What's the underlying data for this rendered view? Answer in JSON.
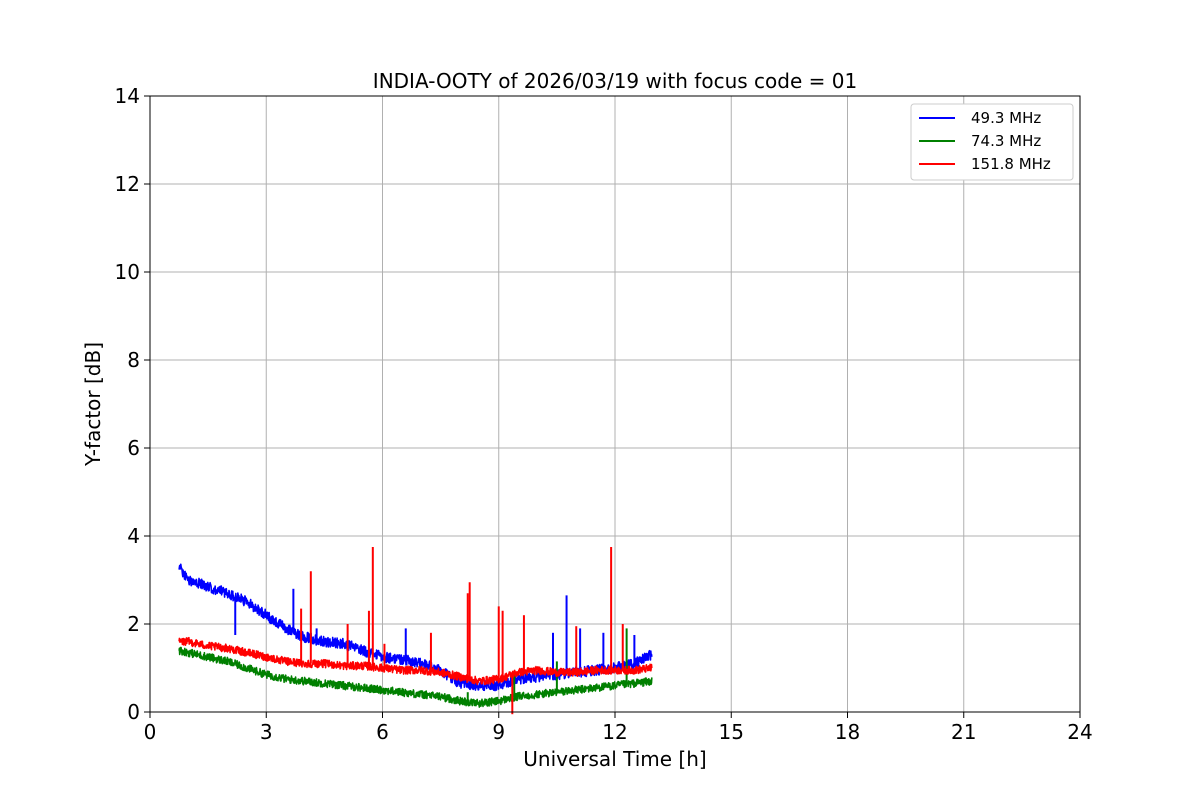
{
  "chart_data": {
    "type": "line",
    "title": "INDIA-OOTY of 2026/03/19 with focus code = 01",
    "xlabel": "Universal Time [h]",
    "ylabel": "Y-factor [dB]",
    "xlim": [
      0,
      24
    ],
    "ylim": [
      0,
      14
    ],
    "xticks": [
      0,
      3,
      6,
      9,
      12,
      15,
      18,
      21,
      24
    ],
    "yticks": [
      0,
      2,
      4,
      6,
      8,
      10,
      12,
      14
    ],
    "grid": true,
    "legend_position": "top-right",
    "series": [
      {
        "name": "  49.3 MHz",
        "color": "#0000ff",
        "x": [
          0.75,
          1.0,
          1.5,
          2.0,
          2.5,
          3.0,
          3.5,
          4.0,
          4.5,
          5.0,
          5.5,
          6.0,
          6.5,
          7.0,
          7.5,
          8.0,
          8.5,
          9.0,
          9.5,
          10.0,
          10.5,
          11.0,
          11.5,
          12.0,
          12.5,
          12.95
        ],
        "y": [
          3.3,
          3.0,
          2.85,
          2.7,
          2.5,
          2.2,
          1.9,
          1.7,
          1.6,
          1.55,
          1.4,
          1.25,
          1.2,
          1.1,
          0.95,
          0.65,
          0.6,
          0.6,
          0.75,
          0.8,
          0.85,
          0.9,
          0.95,
          1.0,
          1.1,
          1.3
        ],
        "spikes": [
          [
            2.2,
            1.75
          ],
          [
            3.7,
            2.8
          ],
          [
            4.3,
            1.9
          ],
          [
            6.6,
            1.9
          ],
          [
            10.4,
            1.8
          ],
          [
            10.75,
            2.65
          ],
          [
            11.1,
            1.9
          ],
          [
            11.7,
            1.8
          ],
          [
            12.5,
            1.75
          ]
        ]
      },
      {
        "name": "  74.3 MHz",
        "color": "#008000",
        "x": [
          0.75,
          1.0,
          1.5,
          2.0,
          2.5,
          3.0,
          3.5,
          4.0,
          4.5,
          5.0,
          5.5,
          6.0,
          6.5,
          7.0,
          7.5,
          8.0,
          8.5,
          9.0,
          9.5,
          10.0,
          10.5,
          11.0,
          11.5,
          12.0,
          12.5,
          12.95
        ],
        "y": [
          1.4,
          1.35,
          1.25,
          1.15,
          1.0,
          0.85,
          0.75,
          0.7,
          0.65,
          0.6,
          0.55,
          0.5,
          0.45,
          0.4,
          0.35,
          0.25,
          0.2,
          0.25,
          0.35,
          0.4,
          0.45,
          0.5,
          0.55,
          0.6,
          0.65,
          0.7
        ],
        "spikes": [
          [
            8.2,
            0.45
          ],
          [
            9.4,
            0.9
          ],
          [
            10.5,
            1.15
          ],
          [
            12.3,
            1.9
          ]
        ]
      },
      {
        "name": "151.8 MHz",
        "color": "#ff0000",
        "x": [
          0.75,
          1.0,
          1.5,
          2.0,
          2.5,
          3.0,
          3.5,
          4.0,
          4.5,
          5.0,
          5.5,
          6.0,
          6.5,
          7.0,
          7.5,
          8.0,
          8.5,
          9.0,
          9.5,
          10.0,
          10.5,
          11.0,
          11.5,
          12.0,
          12.5,
          12.95
        ],
        "y": [
          1.6,
          1.6,
          1.5,
          1.45,
          1.35,
          1.25,
          1.15,
          1.1,
          1.1,
          1.05,
          1.05,
          1.0,
          0.95,
          0.95,
          0.9,
          0.8,
          0.7,
          0.75,
          0.9,
          0.95,
          0.9,
          0.9,
          0.95,
          0.95,
          0.95,
          1.0
        ],
        "spikes": [
          [
            3.9,
            2.35
          ],
          [
            4.15,
            3.2
          ],
          [
            5.1,
            2.0
          ],
          [
            5.65,
            2.3
          ],
          [
            5.75,
            3.75
          ],
          [
            6.05,
            1.55
          ],
          [
            7.25,
            1.8
          ],
          [
            8.2,
            2.7
          ],
          [
            8.25,
            2.95
          ],
          [
            9.0,
            2.4
          ],
          [
            9.1,
            2.3
          ],
          [
            9.35,
            -0.05
          ],
          [
            9.65,
            2.2
          ],
          [
            11.0,
            1.95
          ],
          [
            11.9,
            3.75
          ],
          [
            12.2,
            2.0
          ]
        ]
      }
    ]
  }
}
